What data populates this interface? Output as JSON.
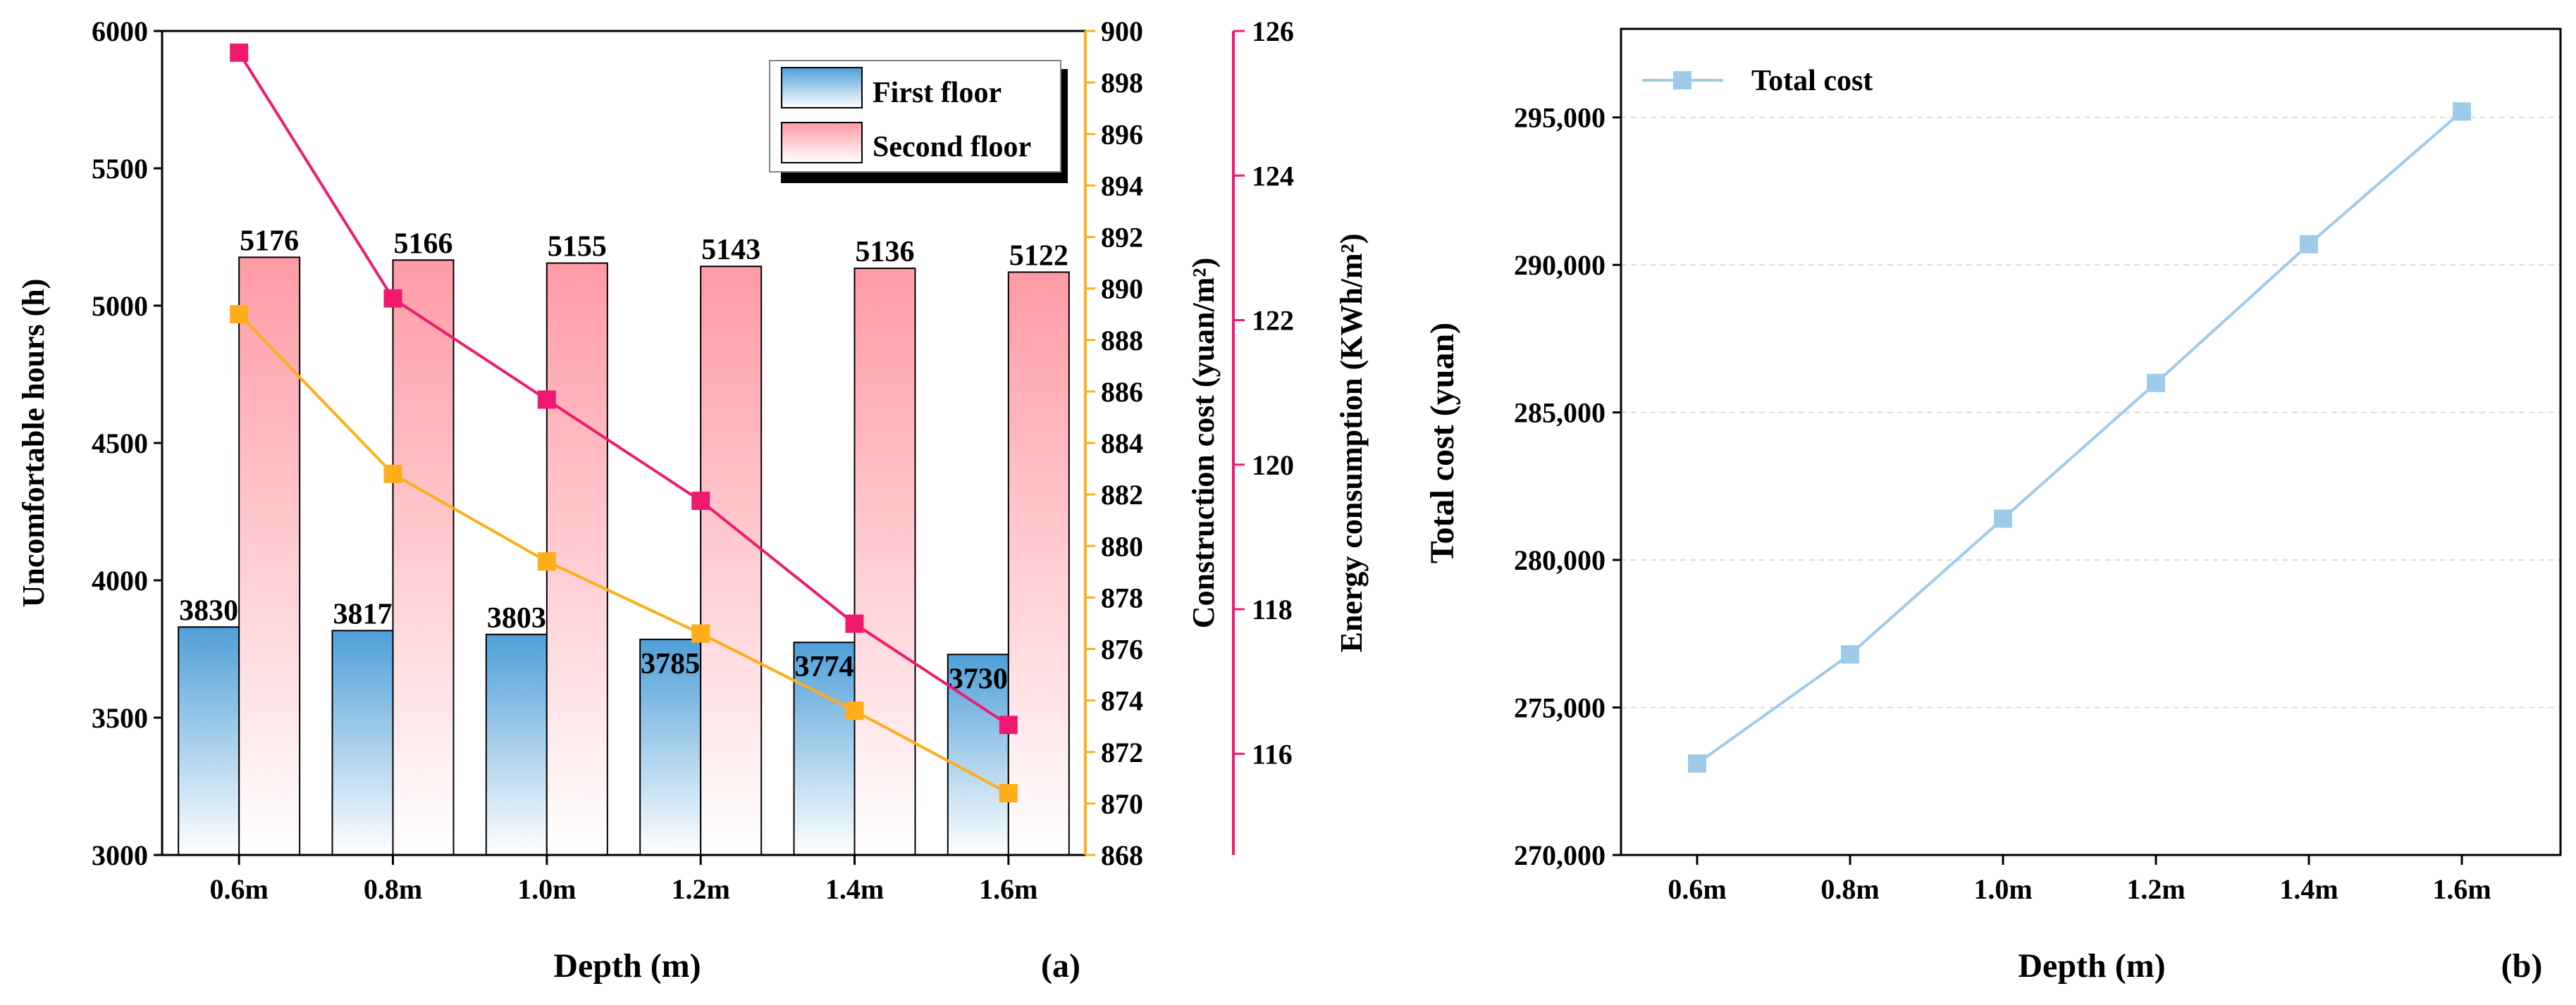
{
  "chart_data": [
    {
      "type": "bar",
      "panel_label": "(a)",
      "categories": [
        "0.6m",
        "0.8m",
        "1.0m",
        "1.2m",
        "1.4m",
        "1.6m"
      ],
      "xlabel": "Depth (m)",
      "series": [
        {
          "name": "First floor",
          "kind": "bar",
          "axis": "left",
          "values": [
            3830,
            3817,
            3803,
            3785,
            3774,
            3730
          ],
          "labels": [
            "3830",
            "3817",
            "3803",
            "3785",
            "3774",
            "3730"
          ],
          "color": "#5aa6dc"
        },
        {
          "name": "Second floor",
          "kind": "bar",
          "axis": "left",
          "values": [
            5176,
            5166,
            5155,
            5143,
            5136,
            5122
          ],
          "labels": [
            "5176",
            "5166",
            "5155",
            "5143",
            "5136",
            "5122"
          ],
          "color": "#ff9aa4"
        },
        {
          "name": "Construction cost",
          "kind": "line",
          "axis": "right1",
          "values": [
            889,
            882.8,
            879.4,
            876.6,
            873.6,
            870.4
          ],
          "color": "#ffad19"
        },
        {
          "name": "Energy consumption",
          "kind": "line",
          "axis": "right2",
          "values": [
            125.7,
            122.3,
            120.9,
            119.5,
            117.8,
            116.4
          ],
          "color": "#f0196e"
        }
      ],
      "axes": {
        "left": {
          "label": "Uncomfortable hours (h)",
          "range": [
            3000,
            6000
          ],
          "ticks": [
            "3000",
            "3500",
            "4000",
            "4500",
            "5000",
            "5500",
            "6000"
          ]
        },
        "right1": {
          "label": "Construction cost (yuan/m²)",
          "range": [
            868,
            900
          ],
          "ticks": [
            "868",
            "870",
            "872",
            "874",
            "876",
            "878",
            "880",
            "882",
            "884",
            "886",
            "888",
            "890",
            "892",
            "894",
            "896",
            "898",
            "900"
          ],
          "color": "#ffad19"
        },
        "right2": {
          "label": "Energy consumption (KWh/m²)",
          "range": [
            114.6,
            126
          ],
          "ticks": [
            "116",
            "118",
            "120",
            "122",
            "124",
            "126"
          ],
          "color": "#f0196e"
        }
      },
      "legend": [
        "First floor",
        "Second floor"
      ]
    },
    {
      "type": "line",
      "panel_label": "(b)",
      "categories": [
        "0.6m",
        "0.8m",
        "1.0m",
        "1.2m",
        "1.4m",
        "1.6m"
      ],
      "series": [
        {
          "name": "Total cost",
          "values": [
            273100,
            276800,
            281400,
            286000,
            290700,
            295200
          ],
          "color": "#9ecbe8"
        }
      ],
      "xlabel": "Depth (m)",
      "ylabel": "Total cost (yuan)",
      "ylim": [
        270000,
        298000
      ],
      "yticks": [
        "270,000",
        "275,000",
        "280,000",
        "285,000",
        "290,000",
        "295,000"
      ],
      "legend": [
        "Total cost"
      ],
      "grid": "horizontal dashed"
    }
  ]
}
